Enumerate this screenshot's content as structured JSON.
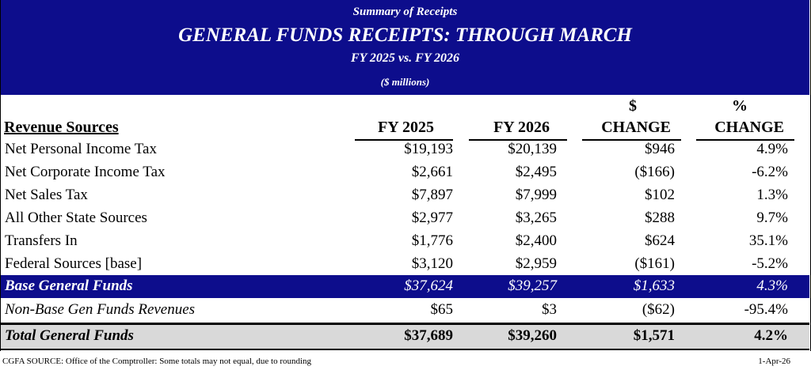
{
  "header": {
    "subtitle": "Summary of Receipts",
    "title": "GENERAL FUNDS RECEIPTS: THROUGH MARCH",
    "comparison": "FY 2025 vs. FY 2026",
    "units": "($ millions)"
  },
  "columns": {
    "label": "Revenue Sources",
    "fy2025": "FY 2025",
    "fy2026": "FY 2026",
    "dollar_top": "$",
    "dollar_bottom": "CHANGE",
    "pct_top": "%",
    "pct_bottom": "CHANGE"
  },
  "rows": [
    {
      "label": "Net Personal Income Tax",
      "fy2025": "$19,193",
      "fy2026": "$20,139",
      "dollar_change": "$946",
      "pct_change": "4.9%"
    },
    {
      "label": "Net Corporate Income Tax",
      "fy2025": "$2,661",
      "fy2026": "$2,495",
      "dollar_change": "($166)",
      "pct_change": "-6.2%"
    },
    {
      "label": "Net Sales Tax",
      "fy2025": "$7,897",
      "fy2026": "$7,999",
      "dollar_change": "$102",
      "pct_change": "1.3%"
    },
    {
      "label": "All Other State Sources",
      "fy2025": "$2,977",
      "fy2026": "$3,265",
      "dollar_change": "$288",
      "pct_change": "9.7%"
    },
    {
      "label": "Transfers In",
      "fy2025": "$1,776",
      "fy2026": "$2,400",
      "dollar_change": "$624",
      "pct_change": "35.1%"
    },
    {
      "label": "Federal Sources [base]",
      "fy2025": "$3,120",
      "fy2026": "$2,959",
      "dollar_change": "($161)",
      "pct_change": "-5.2%"
    }
  ],
  "base": {
    "label": "Base General Funds",
    "fy2025": "$37,624",
    "fy2026": "$39,257",
    "dollar_change": "$1,633",
    "pct_change": "4.3%"
  },
  "nonbase": {
    "label": "Non-Base Gen Funds Revenues",
    "fy2025": "$65",
    "fy2026": "$3",
    "dollar_change": "($62)",
    "pct_change": "-95.4%"
  },
  "total": {
    "label": "Total General Funds",
    "fy2025": "$37,689",
    "fy2026": "$39,260",
    "dollar_change": "$1,571",
    "pct_change": "4.2%"
  },
  "footer": {
    "source": "CGFA SOURCE:  Office of the Comptroller:  Some totals may not equal, due to rounding",
    "date": "1-Apr-26"
  },
  "colors": {
    "banner": "#0d0d8c",
    "total_bg": "#d9d9d9"
  }
}
